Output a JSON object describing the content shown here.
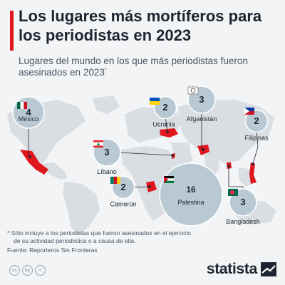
{
  "header": {
    "title": "Los lugares más mortíferos para los periodistas en 2023",
    "subtitle": "Lugares del mundo en los que más periodistas fueron asesinados en 2023",
    "subtitle_mark": "*"
  },
  "chart_data": {
    "type": "bubble-map",
    "unit": "periodistas asesinados",
    "points": [
      {
        "country": "Palestina",
        "value": 16
      },
      {
        "country": "México",
        "value": 4
      },
      {
        "country": "Afganistán",
        "value": 3
      },
      {
        "country": "Líbano",
        "value": 3
      },
      {
        "country": "Bangladesh",
        "value": 3
      },
      {
        "country": "Ucrania",
        "value": 2
      },
      {
        "country": "Filipinas",
        "value": 2
      },
      {
        "country": "Camerún",
        "value": 2
      }
    ]
  },
  "footer": {
    "footnote_line1": "* Sólo incluye a los periodistas que fueron asesinados en el ejercicio",
    "footnote_line2": "de su actividad periodística o a causa de ella.",
    "source": "Fuente: Reporteros Sin Fronteras",
    "cc_icons": [
      "cc",
      "by",
      "="
    ],
    "brand": "statista"
  },
  "colors": {
    "accent": "#e0161f",
    "bubble": "#b9c9d3",
    "bubble_stroke": "#ffffff",
    "highlight_country": "#e0161f",
    "land": "#d9dee3",
    "background": "#f2f4f6",
    "text": "#1d2530"
  }
}
